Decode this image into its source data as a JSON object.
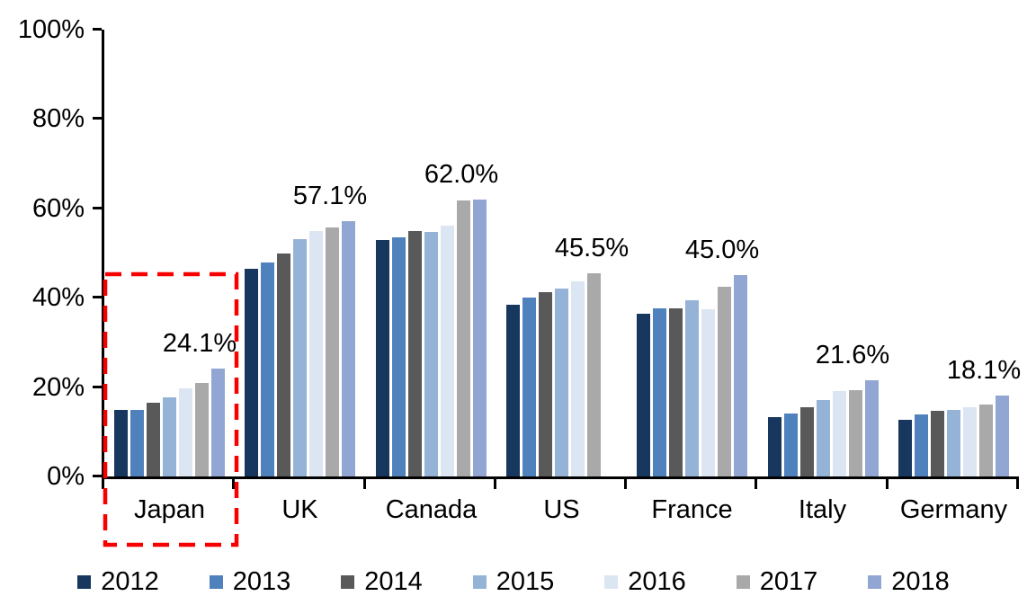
{
  "chart_data": {
    "type": "bar",
    "title": "",
    "xlabel": "",
    "ylabel": "",
    "categories": [
      "Japan",
      "UK",
      "Canada",
      "US",
      "France",
      "Italy",
      "Germany"
    ],
    "series": [
      {
        "name": "2012",
        "color": "#17375E",
        "values": [
          14.8,
          46.4,
          53.0,
          38.5,
          36.5,
          13.3,
          12.7
        ]
      },
      {
        "name": "2013",
        "color": "#4F81BD",
        "values": [
          14.9,
          47.9,
          53.5,
          40.0,
          37.6,
          14.1,
          13.9
        ]
      },
      {
        "name": "2014",
        "color": "#595959",
        "values": [
          16.5,
          49.9,
          54.9,
          41.2,
          37.6,
          15.5,
          14.7
        ]
      },
      {
        "name": "2015",
        "color": "#95B3D7",
        "values": [
          17.8,
          53.2,
          54.7,
          42.1,
          39.4,
          17.1,
          14.9
        ]
      },
      {
        "name": "2016",
        "color": "#DCE6F2",
        "values": [
          19.8,
          54.9,
          56.1,
          43.6,
          37.4,
          19.1,
          15.5
        ]
      },
      {
        "name": "2017",
        "color": "#A9A9A9",
        "values": [
          21.0,
          55.8,
          61.7,
          45.5,
          42.4,
          19.3,
          16.1
        ]
      },
      {
        "name": "2018",
        "color": "#92A6D3",
        "values": [
          24.1,
          57.1,
          62.0,
          null,
          45.0,
          21.6,
          18.1
        ]
      }
    ],
    "data_labels": [
      "24.1%",
      "57.1%",
      "62.0%",
      "45.5%",
      "45.0%",
      "21.6%",
      "18.1%"
    ],
    "ylim": [
      0,
      100
    ],
    "ytick_labels": [
      "0%",
      "20%",
      "40%",
      "60%",
      "80%",
      "100%"
    ],
    "grid": false,
    "legend": {
      "position": "bottom",
      "entries": [
        "2012",
        "2013",
        "2014",
        "2015",
        "2016",
        "2017",
        "2018"
      ]
    },
    "annotation": {
      "type": "dashed-box",
      "target": "Japan",
      "color": "#F80000"
    }
  }
}
